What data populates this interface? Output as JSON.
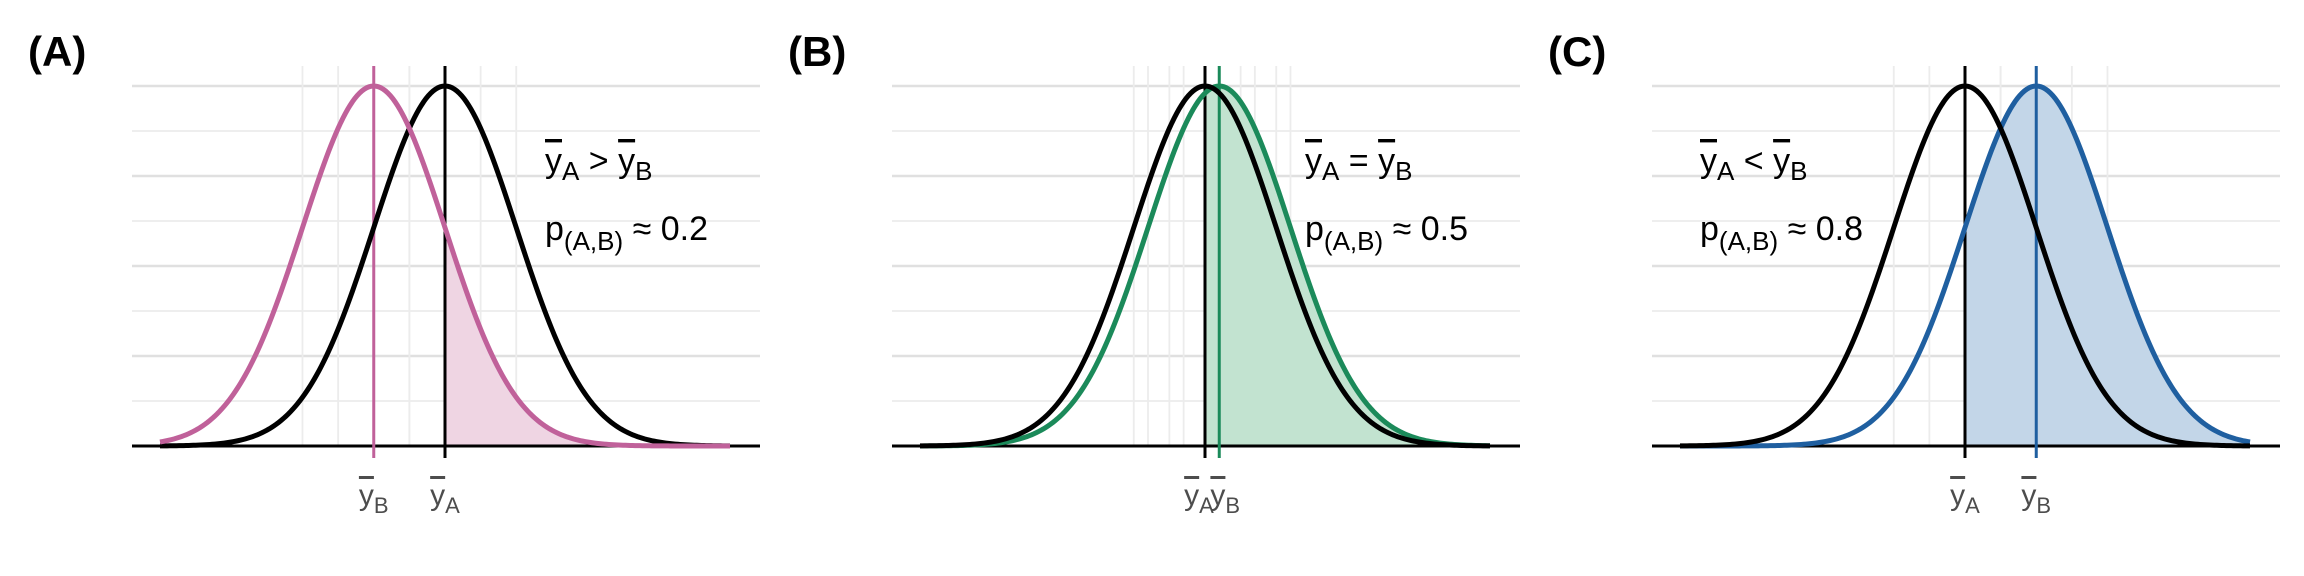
{
  "chart_data": [
    {
      "type": "line",
      "panel_label": "(A)",
      "title": "",
      "xlabel": "",
      "ylabel": "",
      "xlim": [
        -4,
        4
      ],
      "ylim": [
        0,
        1.05
      ],
      "grid": true,
      "reference": {
        "name": "A",
        "mean": 0,
        "sd": 1,
        "color": "#000000"
      },
      "comparison": {
        "name": "B",
        "mean": -1,
        "sd": 1,
        "color": "#C0619A",
        "fill": "#EFD5E3"
      },
      "shade_from": 0,
      "x_tick_labels": [
        {
          "x": -1,
          "base": "y",
          "sub": "B"
        },
        {
          "x": 0,
          "base": "y",
          "sub": "A"
        }
      ],
      "annotation": {
        "relation": {
          "left": "y",
          "left_sub": "A",
          "op": ">",
          "right": "y",
          "right_sub": "B"
        },
        "prob": {
          "base": "p",
          "sub": "(A,B)",
          "op": "≈",
          "value": "0.2"
        }
      }
    },
    {
      "type": "line",
      "panel_label": "(B)",
      "title": "",
      "xlabel": "",
      "ylabel": "",
      "xlim": [
        -4,
        4
      ],
      "ylim": [
        0,
        1.05
      ],
      "grid": true,
      "reference": {
        "name": "A",
        "mean": 0,
        "sd": 1,
        "color": "#000000"
      },
      "comparison": {
        "name": "B",
        "mean": 0.2,
        "sd": 1,
        "color": "#1B8A5A",
        "fill": "#C2E3D0"
      },
      "shade_from": 0,
      "x_tick_labels": [
        {
          "x": 0,
          "base": "y",
          "sub": "A"
        },
        {
          "x": 0.2,
          "base": "y",
          "sub": "B"
        }
      ],
      "annotation": {
        "relation": {
          "left": "y",
          "left_sub": "A",
          "op": "=",
          "right": "y",
          "right_sub": "B"
        },
        "prob": {
          "base": "p",
          "sub": "(A,B)",
          "op": "≈",
          "value": "0.5"
        }
      }
    },
    {
      "type": "line",
      "panel_label": "(C)",
      "title": "",
      "xlabel": "",
      "ylabel": "",
      "xlim": [
        -4,
        4
      ],
      "ylim": [
        0,
        1.05
      ],
      "grid": true,
      "reference": {
        "name": "A",
        "mean": 0,
        "sd": 1,
        "color": "#000000"
      },
      "comparison": {
        "name": "B",
        "mean": 1,
        "sd": 1,
        "color": "#1F5FA0",
        "fill": "#C3D6E8"
      },
      "shade_from": 0,
      "x_tick_labels": [
        {
          "x": 0,
          "base": "y",
          "sub": "A"
        },
        {
          "x": 1,
          "base": "y",
          "sub": "B"
        }
      ],
      "annotation": {
        "relation": {
          "left": "y",
          "left_sub": "A",
          "op": "<",
          "right": "y",
          "right_sub": "B"
        },
        "prob": {
          "base": "p",
          "sub": "(A,B)",
          "op": "≈",
          "value": "0.8"
        }
      }
    }
  ]
}
